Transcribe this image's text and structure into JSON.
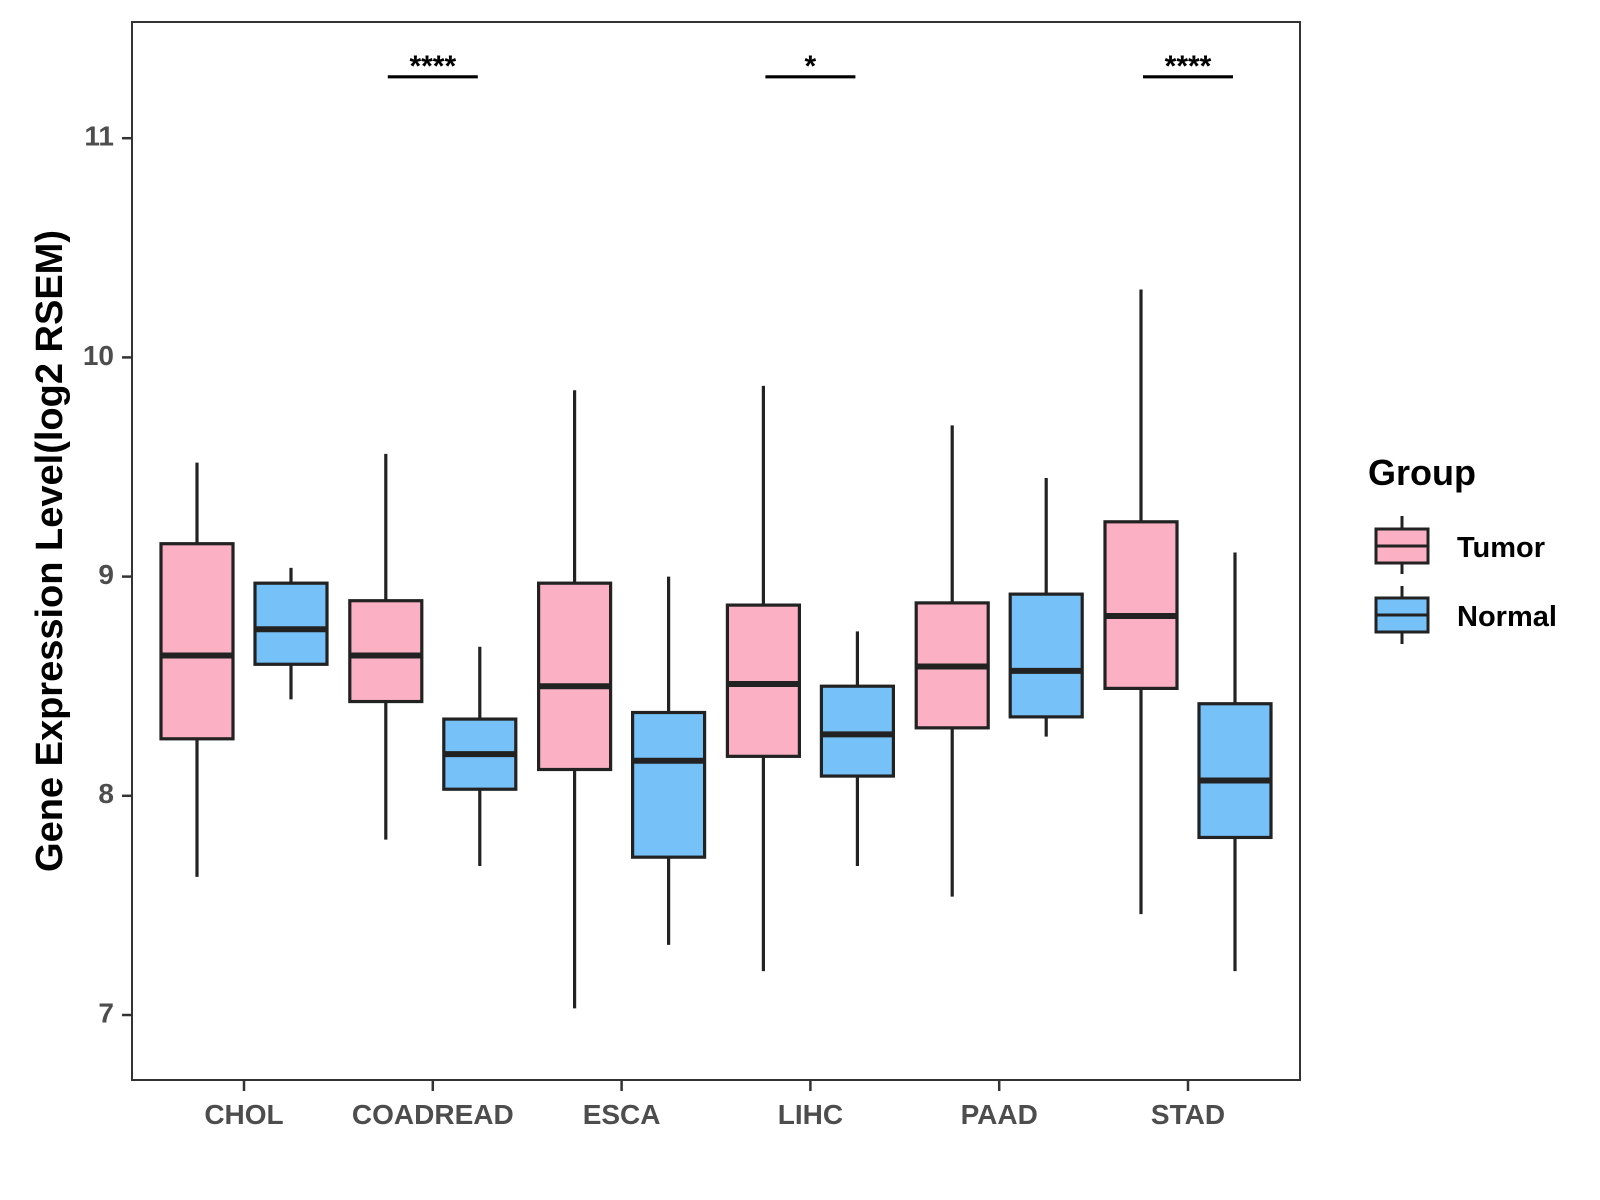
{
  "chart_data": {
    "type": "boxplot",
    "title": "",
    "xlabel": "",
    "ylabel": "Gene Expression Level(log2 RSEM)",
    "ylim": [
      6.7,
      11.5
    ],
    "yticks": [
      7,
      8,
      9,
      10,
      11
    ],
    "categories": [
      "CHOL",
      "COADREAD",
      "ESCA",
      "LIHC",
      "PAAD",
      "STAD"
    ],
    "legend": {
      "title": "Group",
      "position": "right"
    },
    "series": [
      {
        "name": "Tumor",
        "color": "#FBB1C3",
        "boxes": [
          {
            "min": 7.63,
            "q1": 8.26,
            "median": 8.64,
            "q3": 9.15,
            "max": 9.52
          },
          {
            "min": 7.8,
            "q1": 8.43,
            "median": 8.64,
            "q3": 8.89,
            "max": 9.56
          },
          {
            "min": 7.03,
            "q1": 8.12,
            "median": 8.5,
            "q3": 8.97,
            "max": 9.85
          },
          {
            "min": 7.2,
            "q1": 8.18,
            "median": 8.51,
            "q3": 8.87,
            "max": 9.87
          },
          {
            "min": 7.54,
            "q1": 8.31,
            "median": 8.59,
            "q3": 8.88,
            "max": 9.69
          },
          {
            "min": 7.46,
            "q1": 8.49,
            "median": 8.82,
            "q3": 9.25,
            "max": 10.31
          }
        ]
      },
      {
        "name": "Normal",
        "color": "#76C1F8",
        "boxes": [
          {
            "min": 8.44,
            "q1": 8.6,
            "median": 8.76,
            "q3": 8.97,
            "max": 9.04
          },
          {
            "min": 7.68,
            "q1": 8.03,
            "median": 8.19,
            "q3": 8.35,
            "max": 8.68
          },
          {
            "min": 7.32,
            "q1": 7.72,
            "median": 8.16,
            "q3": 8.38,
            "max": 9.0
          },
          {
            "min": 7.68,
            "q1": 8.09,
            "median": 8.28,
            "q3": 8.5,
            "max": 8.75
          },
          {
            "min": 8.27,
            "q1": 8.36,
            "median": 8.57,
            "q3": 8.92,
            "max": 9.45
          },
          {
            "min": 7.2,
            "q1": 7.81,
            "median": 8.07,
            "q3": 8.42,
            "max": 9.11
          }
        ]
      }
    ],
    "significance": [
      {
        "category": "COADREAD",
        "label": "****",
        "y": 11.28
      },
      {
        "category": "LIHC",
        "label": "*",
        "y": 11.28
      },
      {
        "category": "STAD",
        "label": "****",
        "y": 11.28
      }
    ],
    "colors": {
      "outline": "#222222",
      "frame": "#333333",
      "tick_text": "#4d4d4d"
    }
  }
}
